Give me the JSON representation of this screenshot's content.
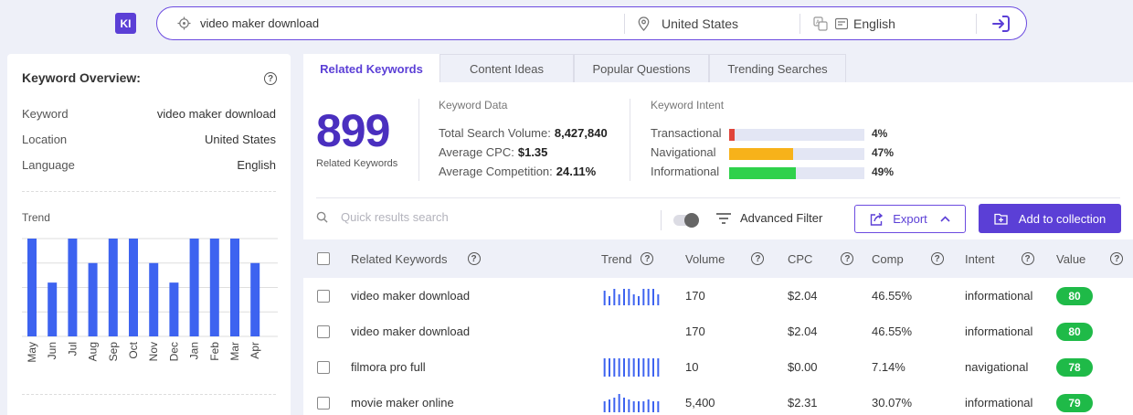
{
  "topbar": {
    "logo": "KI",
    "keyword_value": "video maker download",
    "location": "United States",
    "language": "English"
  },
  "overview": {
    "title": "Keyword Overview:",
    "rows": [
      {
        "label": "Keyword",
        "value": "video maker download"
      },
      {
        "label": "Location",
        "value": "United States"
      },
      {
        "label": "Language",
        "value": "English"
      }
    ],
    "trend_label": "Trend"
  },
  "chart_data": {
    "type": "bar",
    "categories": [
      "May",
      "Jun",
      "Jul",
      "Aug",
      "Sep",
      "Oct",
      "Nov",
      "Dec",
      "Jan",
      "Feb",
      "Mar",
      "Apr"
    ],
    "values": [
      100,
      55,
      100,
      75,
      100,
      100,
      75,
      55,
      100,
      100,
      100,
      75
    ],
    "color": "#3d63f0",
    "grid": true
  },
  "tabs": [
    {
      "label": "Related Keywords",
      "active": true
    },
    {
      "label": "Content Ideas",
      "active": false
    },
    {
      "label": "Popular Questions",
      "active": false
    },
    {
      "label": "Trending Searches",
      "active": false
    }
  ],
  "summary": {
    "count": "899",
    "count_label": "Related Keywords",
    "data_title": "Keyword Data",
    "total_volume_label": "Total Search Volume:",
    "total_volume": "8,427,840",
    "avg_cpc_label": "Average CPC:",
    "avg_cpc": "$1.35",
    "avg_comp_label": "Average Competition:",
    "avg_comp": "24.11%",
    "intent_title": "Keyword Intent",
    "intents": [
      {
        "label": "Transactional",
        "pct": "4%",
        "value": 4,
        "color": "#e0443a"
      },
      {
        "label": "Navigational",
        "pct": "47%",
        "value": 47,
        "color": "#f7b21a"
      },
      {
        "label": "Informational",
        "pct": "49%",
        "value": 49,
        "color": "#2fd14b"
      }
    ]
  },
  "toolbar": {
    "search_placeholder": "Quick results search",
    "advanced_filter": "Advanced Filter",
    "export": "Export",
    "add_to_collection": "Add to collection"
  },
  "table": {
    "headers": {
      "keyword": "Related Keywords",
      "trend": "Trend",
      "volume": "Volume",
      "cpc": "CPC",
      "comp": "Comp",
      "intent": "Intent",
      "value": "Value"
    },
    "rows": [
      {
        "keyword": "video maker download",
        "trend": [
          0.8,
          0.5,
          0.9,
          0.6,
          0.9,
          0.9,
          0.6,
          0.5,
          0.9,
          0.9,
          0.9,
          0.6
        ],
        "volume": "170",
        "cpc": "$2.04",
        "comp": "46.55%",
        "intent": "informational",
        "value": "80"
      },
      {
        "keyword": "video maker download",
        "trend": [],
        "volume": "170",
        "cpc": "$2.04",
        "comp": "46.55%",
        "intent": "informational",
        "value": "80"
      },
      {
        "keyword": "filmora pro full",
        "trend": [
          1,
          1,
          1,
          1,
          1,
          1,
          1,
          1,
          1,
          1,
          1,
          1
        ],
        "volume": "10",
        "cpc": "$0.00",
        "comp": "7.14%",
        "intent": "navigational",
        "value": "78"
      },
      {
        "keyword": "movie maker online",
        "trend": [
          0.6,
          0.7,
          0.8,
          1,
          0.8,
          0.7,
          0.6,
          0.6,
          0.6,
          0.7,
          0.6,
          0.6
        ],
        "volume": "5,400",
        "cpc": "$2.31",
        "comp": "30.07%",
        "intent": "informational",
        "value": "79"
      }
    ]
  }
}
